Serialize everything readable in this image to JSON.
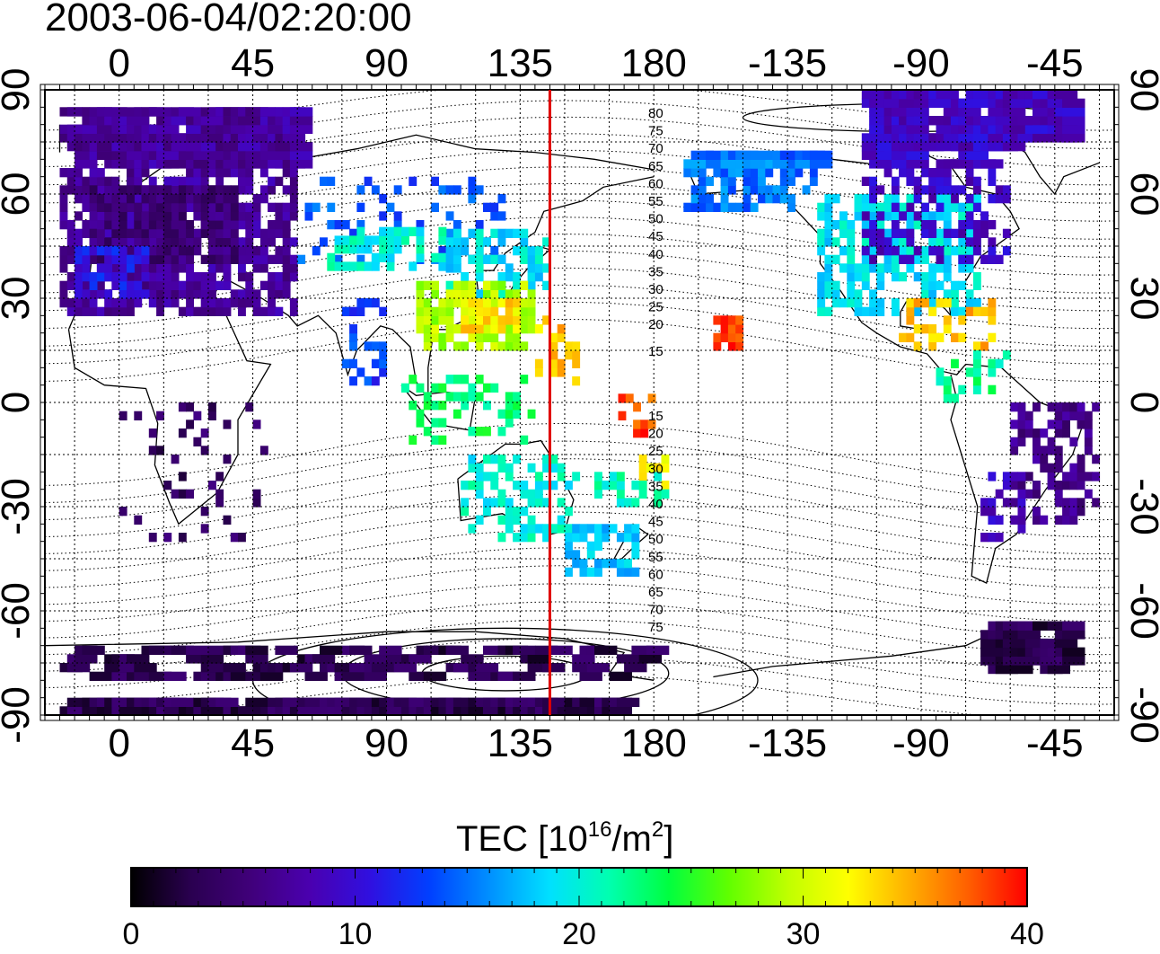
{
  "header": {
    "timestamp": "2003-06-04/02:20:00"
  },
  "map": {
    "x_ticks": [
      "0",
      "45",
      "90",
      "135",
      "180",
      "-135",
      "-90",
      "-45"
    ],
    "y_ticks": [
      "90",
      "60",
      "30",
      "0",
      "-30",
      "-60",
      "-90"
    ],
    "contour_labels_north": [
      "80",
      "75",
      "70",
      "65",
      "60",
      "55",
      "50",
      "45",
      "40",
      "35",
      "30",
      "25",
      "20",
      "15"
    ],
    "contour_labels_south": [
      "15",
      "20",
      "25",
      "30",
      "35",
      "40",
      "45",
      "50",
      "55",
      "60",
      "65",
      "70",
      "75"
    ],
    "marker_line": {
      "longitude": 145,
      "color": "#e00000"
    },
    "tec_regions": [
      {
        "lon": [
          -20,
          60
        ],
        "lat": [
          25,
          85
        ],
        "tec": 7,
        "density": 0.75
      },
      {
        "lon": [
          -10,
          40
        ],
        "lat": [
          40,
          62
        ],
        "tec": 5,
        "density": 0.9
      },
      {
        "lon": [
          -15,
          10
        ],
        "lat": [
          30,
          45
        ],
        "tec": 11,
        "density": 0.6
      },
      {
        "lon": [
          60,
          130
        ],
        "lat": [
          40,
          65
        ],
        "tec": 14,
        "density": 0.25
      },
      {
        "lon": [
          70,
          110
        ],
        "lat": [
          38,
          50
        ],
        "tec": 20,
        "density": 0.5
      },
      {
        "lon": [
          110,
          145
        ],
        "lat": [
          30,
          50
        ],
        "tec": 19,
        "density": 0.65
      },
      {
        "lon": [
          100,
          140
        ],
        "lat": [
          15,
          35
        ],
        "tec": 29,
        "density": 0.6
      },
      {
        "lon": [
          115,
          135
        ],
        "lat": [
          20,
          30
        ],
        "tec": 33,
        "density": 0.7
      },
      {
        "lon": [
          75,
          90
        ],
        "lat": [
          5,
          28
        ],
        "tec": 13,
        "density": 0.3
      },
      {
        "lon": [
          95,
          140
        ],
        "lat": [
          -12,
          8
        ],
        "tec": 23,
        "density": 0.35
      },
      {
        "lon": [
          140,
          155
        ],
        "lat": [
          5,
          25
        ],
        "tec": 34,
        "density": 0.35
      },
      {
        "lon": [
          168,
          180
        ],
        "lat": [
          -10,
          2
        ],
        "tec": 38,
        "density": 0.5
      },
      {
        "lon": [
          175,
          185
        ],
        "lat": [
          -25,
          -15
        ],
        "tec": 33,
        "density": 0.5
      },
      {
        "lon": [
          200,
          210
        ],
        "lat": [
          15,
          25
        ],
        "tec": 39,
        "density": 0.85
      },
      {
        "lon": [
          115,
          155
        ],
        "lat": [
          -40,
          -15
        ],
        "tec": 20,
        "density": 0.45
      },
      {
        "lon": [
          150,
          175
        ],
        "lat": [
          -50,
          -35
        ],
        "tec": 18,
        "density": 0.5
      },
      {
        "lon": [
          160,
          185
        ],
        "lat": [
          -30,
          -20
        ],
        "tec": 21,
        "density": 0.4
      },
      {
        "lon": [
          190,
          235
        ],
        "lat": [
          55,
          72
        ],
        "tec": 15,
        "density": 0.55
      },
      {
        "lon": [
          235,
          290
        ],
        "lat": [
          25,
          60
        ],
        "tec": 19,
        "density": 0.65
      },
      {
        "lon": [
          250,
          300
        ],
        "lat": [
          40,
          75
        ],
        "tec": 9,
        "density": 0.5
      },
      {
        "lon": [
          250,
          320
        ],
        "lat": [
          75,
          88
        ],
        "tec": 9,
        "density": 0.7
      },
      {
        "lon": [
          260,
          295
        ],
        "lat": [
          15,
          28
        ],
        "tec": 34,
        "density": 0.4
      },
      {
        "lon": [
          275,
          300
        ],
        "lat": [
          0,
          15
        ],
        "tec": 22,
        "density": 0.3
      },
      {
        "lon": [
          300,
          330
        ],
        "lat": [
          -35,
          0
        ],
        "tec": 6,
        "density": 0.55
      },
      {
        "lon": [
          290,
          305
        ],
        "lat": [
          -40,
          -20
        ],
        "tec": 9,
        "density": 0.5
      },
      {
        "lon": [
          0,
          50
        ],
        "lat": [
          -40,
          0
        ],
        "tec": 4,
        "density": 0.12
      },
      {
        "lon": [
          -20,
          180
        ],
        "lat": [
          -80,
          -70
        ],
        "tec": 3,
        "density": 0.35
      },
      {
        "lon": [
          -20,
          170
        ],
        "lat": [
          -90,
          -86
        ],
        "tec": 3,
        "density": 0.8
      },
      {
        "lon": [
          290,
          320
        ],
        "lat": [
          -78,
          -65
        ],
        "tec": 3,
        "density": 0.6
      }
    ]
  },
  "colorbar": {
    "title_main": "TEC  [10",
    "title_sup1": "16",
    "title_mid": "/m",
    "title_sup2": "2",
    "title_end": "]",
    "range": [
      0,
      40
    ],
    "tick_labels": [
      "0",
      "10",
      "20",
      "30",
      "40"
    ],
    "colors": [
      "#000000",
      "#2a0050",
      "#40007a",
      "#4a00b0",
      "#3010e0",
      "#0040ff",
      "#0090ff",
      "#00e0ff",
      "#00ffb0",
      "#00ff40",
      "#60ff00",
      "#c0ff00",
      "#ffff00",
      "#ffb000",
      "#ff6000",
      "#ff0000"
    ]
  }
}
